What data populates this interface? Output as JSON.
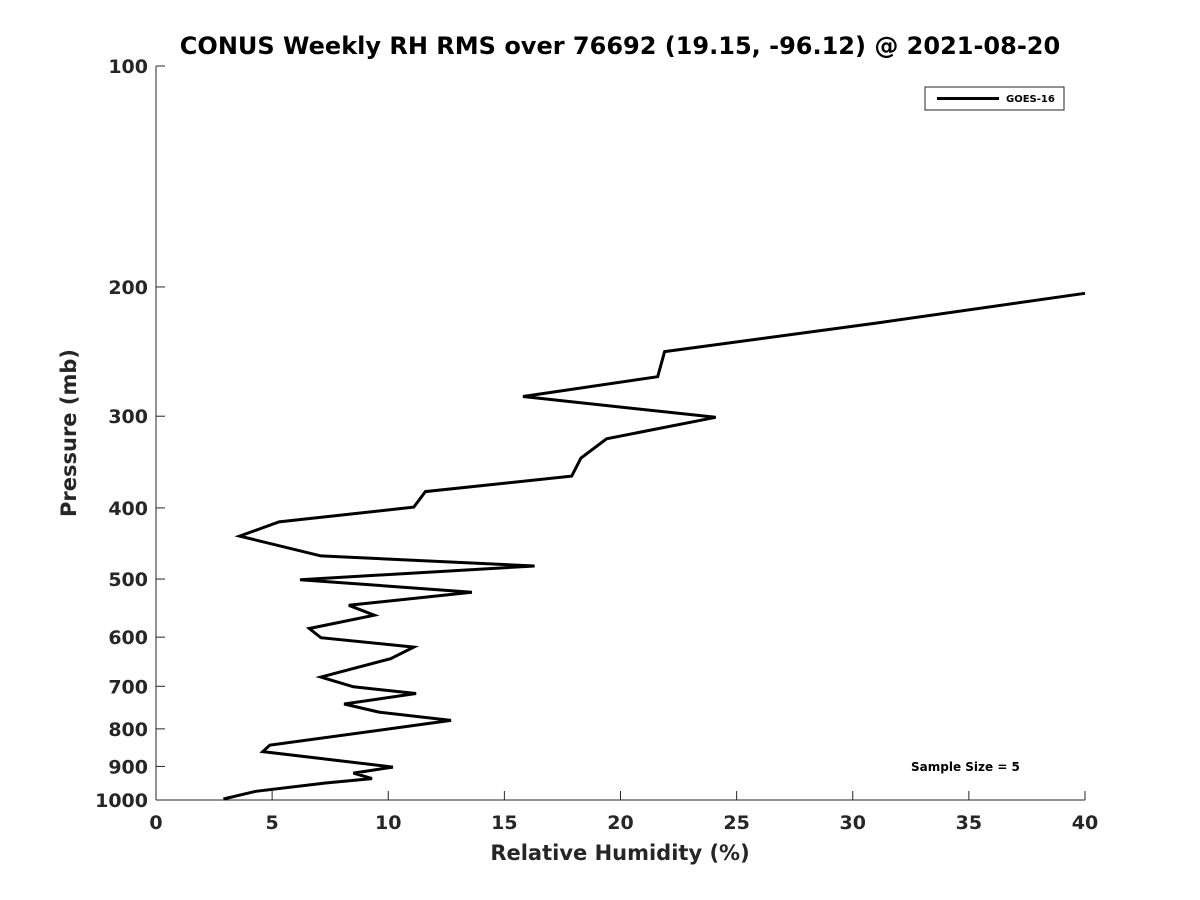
{
  "chart_data": {
    "type": "line",
    "title": "CONUS Weekly RH RMS over 76692 (19.15, -96.12) @ 2021-08-20",
    "xlabel": "Relative Humidity (%)",
    "ylabel": "Pressure (mb)",
    "xlim": [
      0,
      40
    ],
    "ylim": [
      100,
      1000
    ],
    "y_scale": "log",
    "y_reversed": true,
    "x_ticks": [
      0,
      5,
      10,
      15,
      20,
      25,
      30,
      35,
      40
    ],
    "y_ticks": [
      100,
      200,
      300,
      400,
      500,
      600,
      700,
      800,
      900,
      1000
    ],
    "grid": false,
    "legend_position": "top-right",
    "annotation": "Sample Size = 5",
    "series": [
      {
        "name": "GOES-16",
        "color": "#000000",
        "points": [
          [
            40,
            204
          ],
          [
            31,
            224
          ],
          [
            21.9,
            245
          ],
          [
            21.6,
            265
          ],
          [
            15.8,
            282
          ],
          [
            24.1,
            301
          ],
          [
            19.4,
            322
          ],
          [
            18.3,
            342
          ],
          [
            17.9,
            362
          ],
          [
            11.6,
            380
          ],
          [
            11.1,
            399
          ],
          [
            5.3,
            418
          ],
          [
            3.6,
            437
          ],
          [
            7.1,
            465
          ],
          [
            16.3,
            480
          ],
          [
            6.2,
            501
          ],
          [
            13.6,
            521
          ],
          [
            8.3,
            543
          ],
          [
            9.4,
            560
          ],
          [
            6.6,
            584
          ],
          [
            7.1,
            601
          ],
          [
            11.1,
            619
          ],
          [
            10.1,
            642
          ],
          [
            7.1,
            680
          ],
          [
            8.5,
            701
          ],
          [
            11.2,
            716
          ],
          [
            8.1,
            740
          ],
          [
            9.6,
            759
          ],
          [
            12.7,
            779
          ],
          [
            4.9,
            842
          ],
          [
            4.6,
            859
          ],
          [
            7.1,
            878
          ],
          [
            10.2,
            902
          ],
          [
            8.5,
            919
          ],
          [
            9.3,
            935
          ],
          [
            7.3,
            948
          ],
          [
            4.3,
            973
          ],
          [
            2.9,
            997
          ]
        ]
      }
    ]
  }
}
